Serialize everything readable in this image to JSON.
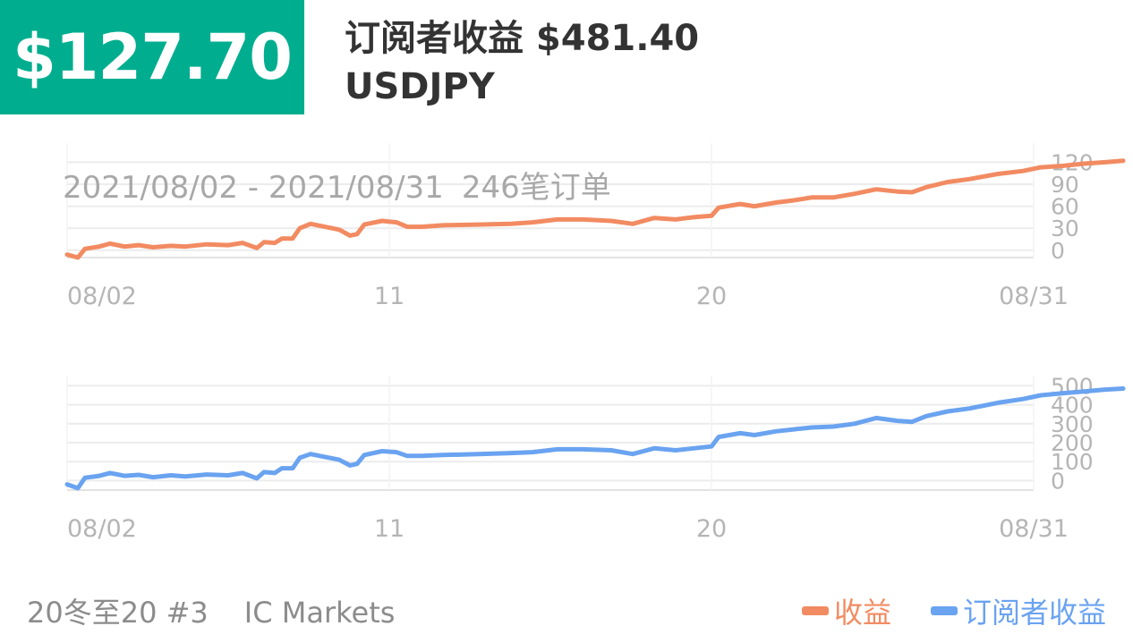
{
  "header": {
    "profit": "$127.70",
    "title": "订阅者收益 $481.40",
    "symbol": "USDJPY"
  },
  "summary": {
    "date_range": "2021/08/02 - 2021/08/31",
    "orders": "246笔订单"
  },
  "footer": {
    "strategy": "20冬至20 #3",
    "broker": "IC Markets"
  },
  "legend": [
    {
      "label": "收益",
      "color": "#f28b62"
    },
    {
      "label": "订阅者收益",
      "color": "#6aa3f0"
    }
  ],
  "chart_data": [
    {
      "type": "line",
      "x_ticks": [
        "08/02",
        "11",
        "20",
        "08/31"
      ],
      "y_ticks": [
        0,
        30,
        60,
        90,
        120
      ],
      "ylim": [
        -10,
        140
      ],
      "grid": true,
      "series": [
        {
          "name": "收益",
          "color": "#f28b62",
          "points": [
            [
              0,
              -6
            ],
            [
              0.3,
              -10
            ],
            [
              0.5,
              2
            ],
            [
              0.9,
              5
            ],
            [
              1.2,
              9
            ],
            [
              1.6,
              5
            ],
            [
              2.0,
              7
            ],
            [
              2.4,
              4
            ],
            [
              2.9,
              6
            ],
            [
              3.3,
              5
            ],
            [
              3.9,
              8
            ],
            [
              4.5,
              7
            ],
            [
              4.9,
              10
            ],
            [
              5.3,
              3
            ],
            [
              5.5,
              11
            ],
            [
              5.8,
              10
            ],
            [
              6.0,
              16
            ],
            [
              6.3,
              16
            ],
            [
              6.5,
              30
            ],
            [
              6.8,
              36
            ],
            [
              7.2,
              32
            ],
            [
              7.6,
              28
            ],
            [
              7.9,
              20
            ],
            [
              8.1,
              22
            ],
            [
              8.3,
              35
            ],
            [
              8.8,
              40
            ],
            [
              9.2,
              38
            ],
            [
              9.5,
              32
            ],
            [
              9.9,
              32
            ],
            [
              10.5,
              34
            ],
            [
              11.5,
              35
            ],
            [
              12.4,
              36
            ],
            [
              13.0,
              38
            ],
            [
              13.7,
              42
            ],
            [
              14.4,
              42
            ],
            [
              15.2,
              40
            ],
            [
              15.8,
              36
            ],
            [
              16.4,
              44
            ],
            [
              17.0,
              42
            ],
            [
              17.5,
              45
            ],
            [
              18.0,
              47
            ],
            [
              18.2,
              58
            ],
            [
              18.8,
              63
            ],
            [
              19.2,
              60
            ],
            [
              19.8,
              65
            ],
            [
              20.3,
              68
            ],
            [
              20.8,
              72
            ],
            [
              21.4,
              72
            ],
            [
              22.0,
              77
            ],
            [
              22.6,
              83
            ],
            [
              23.2,
              80
            ],
            [
              23.6,
              79
            ],
            [
              24.0,
              86
            ],
            [
              24.6,
              93
            ],
            [
              25.2,
              97
            ],
            [
              26.0,
              104
            ],
            [
              26.7,
              108
            ],
            [
              27.2,
              113
            ],
            [
              27.8,
              115
            ],
            [
              28.4,
              118
            ],
            [
              29.0,
              120
            ],
            [
              29.5,
              122
            ]
          ]
        }
      ]
    },
    {
      "type": "line",
      "x_ticks": [
        "08/02",
        "11",
        "20",
        "08/31"
      ],
      "y_ticks": [
        0,
        100,
        200,
        300,
        400,
        500
      ],
      "ylim": [
        -50,
        530
      ],
      "grid": true,
      "series": [
        {
          "name": "订阅者收益",
          "color": "#6aa3f0",
          "points": [
            [
              0,
              -20
            ],
            [
              0.3,
              -40
            ],
            [
              0.5,
              15
            ],
            [
              0.9,
              25
            ],
            [
              1.2,
              40
            ],
            [
              1.6,
              25
            ],
            [
              2.0,
              30
            ],
            [
              2.4,
              18
            ],
            [
              2.9,
              28
            ],
            [
              3.3,
              22
            ],
            [
              3.9,
              32
            ],
            [
              4.5,
              28
            ],
            [
              4.9,
              40
            ],
            [
              5.3,
              12
            ],
            [
              5.5,
              45
            ],
            [
              5.8,
              40
            ],
            [
              6.0,
              65
            ],
            [
              6.3,
              65
            ],
            [
              6.5,
              120
            ],
            [
              6.8,
              140
            ],
            [
              7.2,
              125
            ],
            [
              7.6,
              110
            ],
            [
              7.9,
              80
            ],
            [
              8.1,
              88
            ],
            [
              8.3,
              135
            ],
            [
              8.8,
              155
            ],
            [
              9.2,
              150
            ],
            [
              9.5,
              130
            ],
            [
              9.9,
              130
            ],
            [
              10.5,
              135
            ],
            [
              11.5,
              140
            ],
            [
              12.4,
              145
            ],
            [
              13.0,
              150
            ],
            [
              13.7,
              165
            ],
            [
              14.4,
              165
            ],
            [
              15.2,
              160
            ],
            [
              15.8,
              140
            ],
            [
              16.4,
              170
            ],
            [
              17.0,
              160
            ],
            [
              17.5,
              170
            ],
            [
              18.0,
              180
            ],
            [
              18.2,
              230
            ],
            [
              18.8,
              250
            ],
            [
              19.2,
              240
            ],
            [
              19.8,
              260
            ],
            [
              20.3,
              270
            ],
            [
              20.8,
              280
            ],
            [
              21.4,
              285
            ],
            [
              22.0,
              300
            ],
            [
              22.6,
              330
            ],
            [
              23.2,
              315
            ],
            [
              23.6,
              310
            ],
            [
              24.0,
              340
            ],
            [
              24.6,
              365
            ],
            [
              25.2,
              380
            ],
            [
              26.0,
              410
            ],
            [
              26.7,
              430
            ],
            [
              27.2,
              450
            ],
            [
              27.8,
              460
            ],
            [
              28.4,
              470
            ],
            [
              29.0,
              480
            ],
            [
              29.5,
              485
            ]
          ]
        }
      ]
    }
  ]
}
